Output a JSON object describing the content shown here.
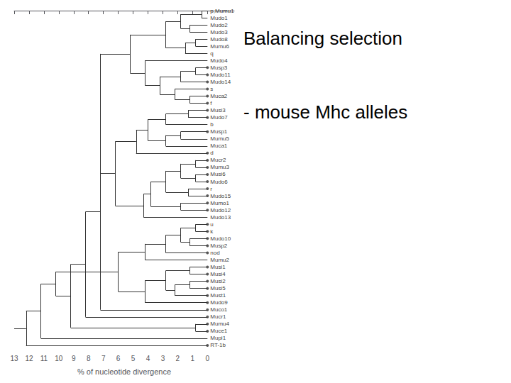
{
  "chart_data": {
    "type": "dendrogram",
    "title": "Balancing selection",
    "subtitle": "- mouse Mhc alleles",
    "xlabel": "% of nucleotide divergence",
    "xlim": [
      13,
      -1.8
    ],
    "xticks": [
      0,
      1,
      2,
      3,
      4,
      5,
      6,
      7,
      8,
      9,
      10,
      11,
      12,
      13
    ],
    "grid": false,
    "taxa": [
      "p,Mumu1",
      "Mudo1",
      "Mudo2",
      "Mudo3",
      "Mudo8",
      "Mumu6",
      "q",
      "Mudo4",
      "Musp3",
      "Mudo11",
      "Mudo14",
      "s",
      "Muca2",
      "f",
      "Musi3",
      "Mudo7",
      "b",
      "Musp1",
      "Mumu5",
      "Muca1",
      "d",
      "Mucr2",
      "Mumu3",
      "Musi6",
      "Mudo6",
      "r",
      "Mudo15",
      "Mumo1",
      "Mudo12",
      "Mudo13",
      "u",
      "k",
      "Mudo10",
      "Musp2",
      "nod",
      "Mumu2",
      "Musi1",
      "Musi4",
      "Musi2",
      "Musi5",
      "Must1",
      "Mudo9",
      "Muco1",
      "Mucr1",
      "Mumu4",
      "Muce1",
      "Mupi1",
      "RT-1b"
    ],
    "dot_taxa": [
      "Musp3",
      "Mudo11",
      "Mudo14",
      "s",
      "Muca2",
      "f",
      "Musi3",
      "Mudo7",
      "Musp1",
      "d",
      "Mucr2",
      "Mumu3",
      "Musi6",
      "Mudo6",
      "r",
      "Mudo15",
      "Mumo1",
      "Mudo12",
      "u",
      "k",
      "Mudo10",
      "Musp2",
      "nod",
      "Musi1",
      "Musi4",
      "Musi2",
      "Musi5",
      "Must1",
      "Mudo9",
      "Muco1",
      "Mucr1",
      "Mumu4",
      "Muce1",
      "RT-1b"
    ],
    "tree": {
      "height": 13,
      "children": [
        {
          "height": 12.2,
          "children": [
            {
              "height": 11.2,
              "children": [
                {
                  "height": 10.2,
                  "children": [
                    {
                      "height": 9.2,
                      "children": [
                        {
                          "height": 8.2,
                          "children": [
                            {
                              "height": 7.2,
                              "children": [
                                {
                                  "height": 7.2,
                                  "children": [
                                    {
                                      "height": 5.2,
                                      "children": [
                                        {
                                          "height": 2.8,
                                          "children": [
                                            {
                                              "height": 1.8,
                                              "children": [
                                                {
                                                  "height": 0.4,
                                                  "children": [
                                                    "p,Mumu1",
                                                    "Mudo1"
                                                  ]
                                                },
                                                {
                                                  "height": 1.2,
                                                  "children": [
                                                    "Mudo2",
                                                    "Mudo3"
                                                  ]
                                                }
                                              ]
                                            },
                                            {
                                              "height": 1.5,
                                              "children": [
                                                {
                                                  "height": 0.8,
                                                  "children": [
                                                    "Mudo8",
                                                    "Mumu6"
                                                  ]
                                                },
                                                "q"
                                              ]
                                            }
                                          ]
                                        },
                                        {
                                          "height": 4.2,
                                          "children": [
                                            "Mudo4",
                                            {
                                              "height": 3.2,
                                              "children": [
                                                {
                                                  "height": 1.8,
                                                  "children": [
                                                    {
                                                      "height": 0.8,
                                                      "children": [
                                                        "Musp3",
                                                        "Mudo11"
                                                      ]
                                                    },
                                                    "Mudo14"
                                                  ]
                                                },
                                                {
                                                  "height": 2.2,
                                                  "children": [
                                                    "s",
                                                    {
                                                      "height": 1.2,
                                                      "children": [
                                                        "Muca2",
                                                        "f"
                                                      ]
                                                    }
                                                  ]
                                                }
                                              ]
                                            }
                                          ]
                                        }
                                      ]
                                    },
                                    {
                                      "height": 6.2,
                                      "children": [
                                        {
                                          "height": 4.8,
                                          "children": [
                                            {
                                              "height": 4.0,
                                              "children": [
                                                {
                                                  "height": 2.8,
                                                  "children": [
                                                    {
                                                      "height": 1.3,
                                                      "children": [
                                                        "Musi3",
                                                        "Mudo7"
                                                      ]
                                                    },
                                                    "b"
                                                  ]
                                                },
                                                {
                                                  "height": 2.8,
                                                  "children": [
                                                    {
                                                      "height": 1.8,
                                                      "children": [
                                                        "Musp1",
                                                        "Mumu5"
                                                      ]
                                                    },
                                                    "Muca1"
                                                  ]
                                                }
                                              ]
                                            },
                                            "d"
                                          ]
                                        },
                                        {
                                          "height": 4.3,
                                          "children": [
                                            {
                                              "height": 3.8,
                                              "children": [
                                                {
                                                  "height": 2.8,
                                                  "children": [
                                                    {
                                                      "height": 1.8,
                                                      "children": [
                                                        {
                                                          "height": 0.8,
                                                          "children": [
                                                            "Mucr2",
                                                            "Mumu3"
                                                          ]
                                                        },
                                                        {
                                                          "height": 0.8,
                                                          "children": [
                                                            "Musi6",
                                                            "Mudo6"
                                                          ]
                                                        }
                                                      ]
                                                    },
                                                    {
                                                      "height": 1.3,
                                                      "children": [
                                                        "r",
                                                        "Mudo15"
                                                      ]
                                                    }
                                                  ]
                                                },
                                                {
                                                  "height": 1.8,
                                                  "children": [
                                                    "Mumo1",
                                                    "Mudo12"
                                                  ]
                                                }
                                              ]
                                            },
                                            "Mudo13"
                                          ]
                                        }
                                      ]
                                    }
                                  ]
                                },
                                "Muco1"
                              ]
                            },
                            "Mucr1"
                          ]
                        },
                        {
                          "height": 0.8,
                          "children": [
                            "Mumu4",
                            "Muce1"
                          ]
                        }
                      ]
                    },
                    {
                      "height": 6.0,
                      "children": [
                        {
                          "height": 4.2,
                          "children": [
                            {
                              "height": 2.8,
                              "children": [
                                {
                                  "height": 1.8,
                                  "children": [
                                    {
                                      "height": 0.8,
                                      "children": [
                                        "u",
                                        "k"
                                      ]
                                    },
                                    {
                                      "height": 1.2,
                                      "children": [
                                        "Mudo10",
                                        "Musp2"
                                      ]
                                    }
                                  ]
                                },
                                "nod"
                              ]
                            },
                            "Mumu2"
                          ]
                        },
                        {
                          "height": 4.2,
                          "children": [
                            {
                              "height": 2.8,
                              "children": [
                                {
                                  "height": 1.2,
                                  "children": [
                                    "Musi1",
                                    "Musi4"
                                  ]
                                },
                                {
                                  "height": 2.2,
                                  "children": [
                                    {
                                      "height": 1.2,
                                      "children": [
                                        "Musi2",
                                        "Musi5"
                                      ]
                                    },
                                    "Must1"
                                  ]
                                }
                              ]
                            },
                            "Mudo9"
                          ]
                        }
                      ]
                    }
                  ]
                },
                "Mupi1"
              ]
            },
            "RT-1b"
          ]
        }
      ]
    }
  }
}
